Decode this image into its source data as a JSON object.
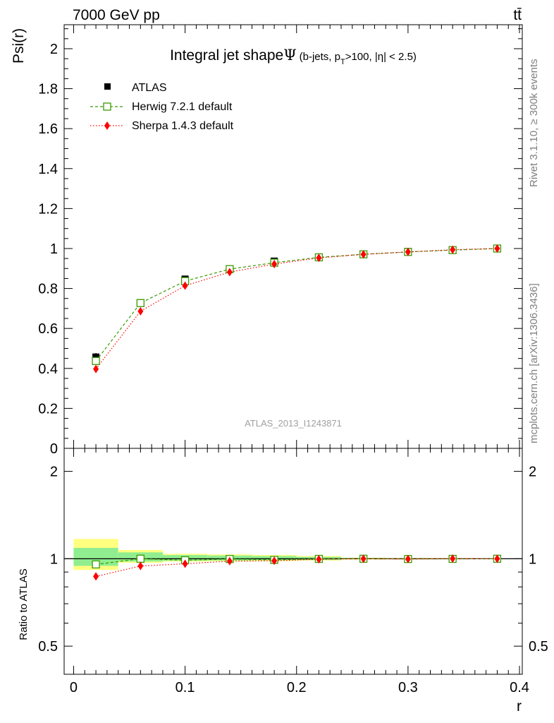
{
  "header": {
    "energy_label": "7000 GeV pp",
    "process_label": "tt̄"
  },
  "side_labels": {
    "rivet": "Rivet 3.1.10, ≥ 300k events",
    "mcplots": "mcplots.cern.ch [arXiv:1306.3436]"
  },
  "chart_data": [
    {
      "type": "line",
      "panel": "main",
      "title": "Integral jet shapeΨ",
      "subtitle": "(b-jets, p_T>100, |η| < 2.5)",
      "title_parts": {
        "main": "Integral jet shape",
        "psi": "Ψ",
        "pre": "(b-jets, p",
        "sub": "T",
        "post": ">100, |η| < 2.5)"
      },
      "xlabel": "r",
      "ylabel": "Psi(r)",
      "xlim": [
        -0.0085,
        0.4025
      ],
      "ylim": [
        0,
        2.12
      ],
      "x_ticks": [
        0,
        0.1,
        0.2,
        0.3,
        0.4
      ],
      "x_tick_labels": [
        "0",
        "0.1",
        "0.2",
        "0.3",
        "0.4"
      ],
      "y_ticks": [
        0,
        0.2,
        0.4,
        0.6,
        0.8,
        1,
        1.2,
        1.4,
        1.6,
        1.8,
        2
      ],
      "y_tick_labels": [
        "0",
        "0.2",
        "0.4",
        "0.6",
        "0.8",
        "1",
        "1.2",
        "1.4",
        "1.6",
        "1.8",
        "2"
      ],
      "x": [
        0.02,
        0.06,
        0.1,
        0.14,
        0.18,
        0.22,
        0.26,
        0.3,
        0.34,
        0.38
      ],
      "series": [
        {
          "name": "ATLAS",
          "values": [
            0.457,
            0.727,
            0.847,
            0.899,
            0.937,
            0.957,
            0.971,
            0.985,
            0.993,
            1.0
          ],
          "errors": [
            0.02,
            0.02,
            0.015,
            0.012,
            0.01,
            0.007,
            0.005,
            0.003,
            0.002,
            0.0
          ],
          "color": "#000000",
          "marker": "square"
        },
        {
          "name": "Herwig 7.2.1 default",
          "values": [
            0.437,
            0.727,
            0.837,
            0.897,
            0.929,
            0.956,
            0.971,
            0.983,
            0.992,
            1.0
          ],
          "color": "#3a9a00",
          "marker": "open-square",
          "line": "dashed"
        },
        {
          "name": "Sherpa 1.4.3 default",
          "values": [
            0.397,
            0.686,
            0.814,
            0.882,
            0.922,
            0.953,
            0.971,
            0.983,
            0.994,
            1.0
          ],
          "color": "#ff0000",
          "marker": "diamond",
          "line": "dotted"
        }
      ],
      "legend_position": "top-left",
      "watermark": "ATLAS_2013_I1243871"
    },
    {
      "type": "line",
      "panel": "ratio",
      "ylabel": "Ratio to ATLAS",
      "xlabel": "r",
      "ylim": [
        0.4,
        2.4
      ],
      "y_scale": "log",
      "y_ticks": [
        0.5,
        1,
        2
      ],
      "y_tick_labels": [
        "0.5",
        "1",
        "2"
      ],
      "x": [
        0.02,
        0.06,
        0.1,
        0.14,
        0.18,
        0.22,
        0.26,
        0.3,
        0.34,
        0.38
      ],
      "bands": [
        {
          "x0": 0.0,
          "x1": 0.04,
          "yellow": [
            0.915,
            1.17
          ],
          "green": [
            0.945,
            1.09
          ]
        },
        {
          "x0": 0.04,
          "x1": 0.08,
          "yellow": [
            0.968,
            1.072
          ],
          "green": [
            0.978,
            1.052
          ]
        },
        {
          "x0": 0.08,
          "x1": 0.12,
          "yellow": [
            0.978,
            1.04
          ],
          "green": [
            0.984,
            1.03
          ]
        },
        {
          "x0": 0.12,
          "x1": 0.16,
          "yellow": [
            0.98,
            1.035
          ],
          "green": [
            0.986,
            1.026
          ]
        },
        {
          "x0": 0.16,
          "x1": 0.2,
          "yellow": [
            0.982,
            1.03
          ],
          "green": [
            0.988,
            1.022
          ]
        },
        {
          "x0": 0.2,
          "x1": 0.24,
          "yellow": [
            0.986,
            1.022
          ],
          "green": [
            0.99,
            1.015
          ]
        },
        {
          "x0": 0.24,
          "x1": 0.28,
          "yellow": [
            0.994,
            1.008
          ],
          "green": [
            0.996,
            1.006
          ]
        },
        {
          "x0": 0.28,
          "x1": 0.32,
          "yellow": [
            0.996,
            1.006
          ],
          "green": [
            0.997,
            1.004
          ]
        },
        {
          "x0": 0.32,
          "x1": 0.36,
          "yellow": [
            0.998,
            1.004
          ],
          "green": [
            0.999,
            1.002
          ]
        },
        {
          "x0": 0.36,
          "x1": 0.4,
          "yellow": [
            0.999,
            1.002
          ],
          "green": [
            0.9995,
            1.001
          ]
        }
      ],
      "series": [
        {
          "name": "Herwig 7.2.1 default",
          "values": [
            0.956,
            1.0,
            0.988,
            0.998,
            0.991,
            0.999,
            1.0,
            0.998,
            0.999,
            1.0
          ],
          "color": "#3a9a00",
          "marker": "open-square",
          "line": "dashed"
        },
        {
          "name": "Sherpa 1.4.3 default",
          "values": [
            0.869,
            0.944,
            0.961,
            0.981,
            0.984,
            0.996,
            1.0,
            0.998,
            1.001,
            1.0
          ],
          "color": "#ff0000",
          "marker": "diamond",
          "line": "dotted"
        }
      ]
    }
  ]
}
